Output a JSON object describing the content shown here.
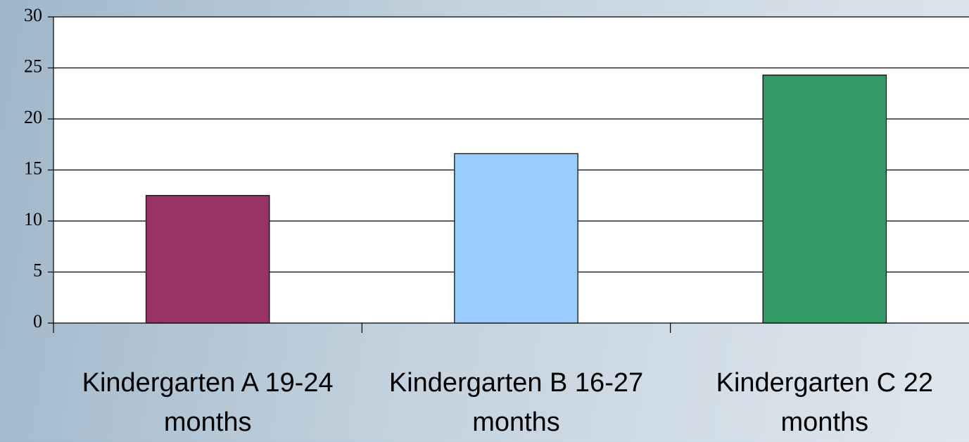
{
  "chart_data": {
    "type": "bar",
    "categories": [
      "Kindergarten A 19-24 months",
      "Kindergarten B 16-27 months",
      "Kindergarten C 22 months"
    ],
    "values": [
      12.5,
      16.6,
      24.3
    ],
    "colors": [
      "#993366",
      "#99ccff",
      "#339966"
    ],
    "ylim": [
      0,
      30
    ],
    "yticks": [
      0,
      5,
      10,
      15,
      20,
      25,
      30
    ],
    "grid": true
  }
}
